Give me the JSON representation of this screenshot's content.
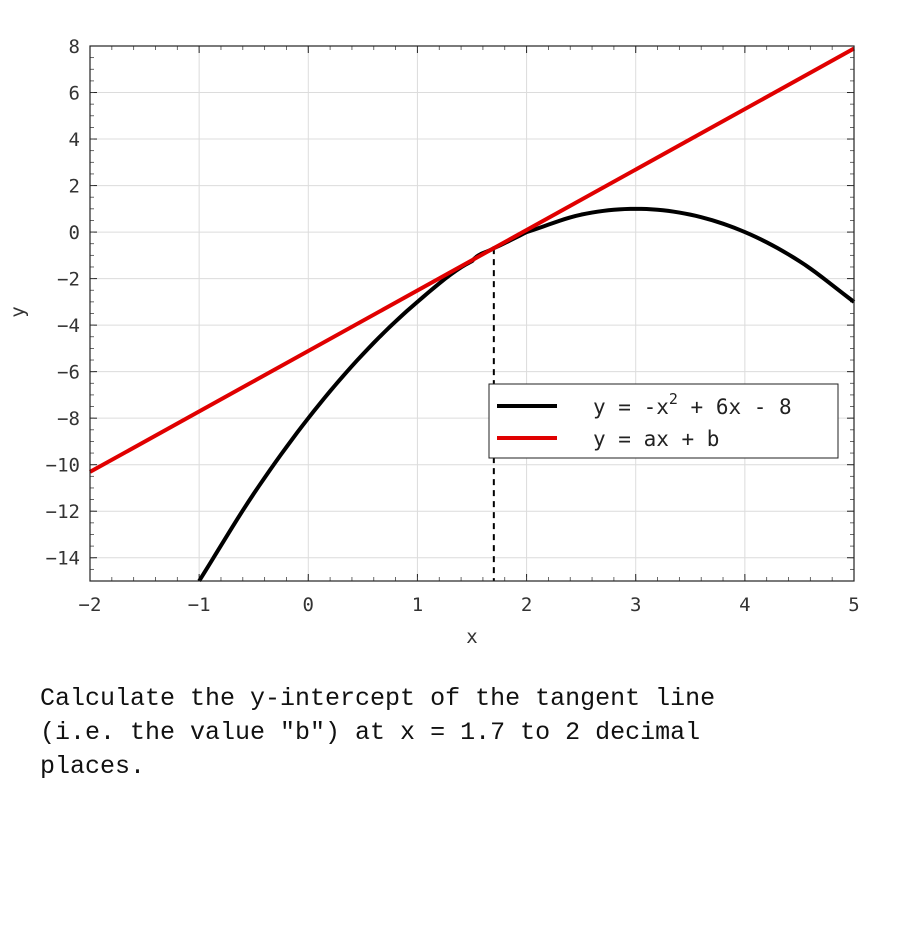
{
  "chart_data": {
    "type": "line",
    "xlabel": "x",
    "ylabel": "y",
    "xlim": [
      -2,
      5
    ],
    "ylim": [
      -15,
      8
    ],
    "x_ticks": [
      -2,
      -1,
      0,
      1,
      2,
      3,
      4,
      5
    ],
    "y_ticks": [
      8,
      6,
      4,
      2,
      0,
      -2,
      -4,
      -6,
      -8,
      -10,
      -12,
      -14
    ],
    "grid": true,
    "legend_position": "center-right",
    "legend": [
      {
        "label_main": "y = -x",
        "label_sup": "2",
        "label_rest": " + 6x - 8",
        "color": "#000000"
      },
      {
        "label_main": "y = ax + b",
        "label_sup": "",
        "label_rest": "",
        "color": "#e00000"
      }
    ],
    "series": [
      {
        "expression": "-x^2 + 6x - 8",
        "color": "#000000",
        "x": [
          -1,
          -0.5,
          0,
          0.5,
          1,
          1.5,
          1.7,
          2,
          2.5,
          3,
          3.5,
          4,
          4.5,
          5
        ],
        "y": [
          -15,
          -11.25,
          -8,
          -5.25,
          -3,
          -1.25,
          -0.69,
          0,
          0.75,
          1,
          0.75,
          0,
          -1.25,
          -3
        ]
      },
      {
        "expression": "ax + b",
        "color": "#e00000",
        "x": [
          -2,
          5
        ],
        "y": [
          -10.31,
          7.89
        ]
      }
    ],
    "vline": {
      "x": 1.7,
      "style": "dashed",
      "color": "#000000"
    }
  },
  "question": "Calculate the y-intercept of the tangent line\n(i.e. the value \"b\") at x = 1.7 to 2 decimal\nplaces."
}
